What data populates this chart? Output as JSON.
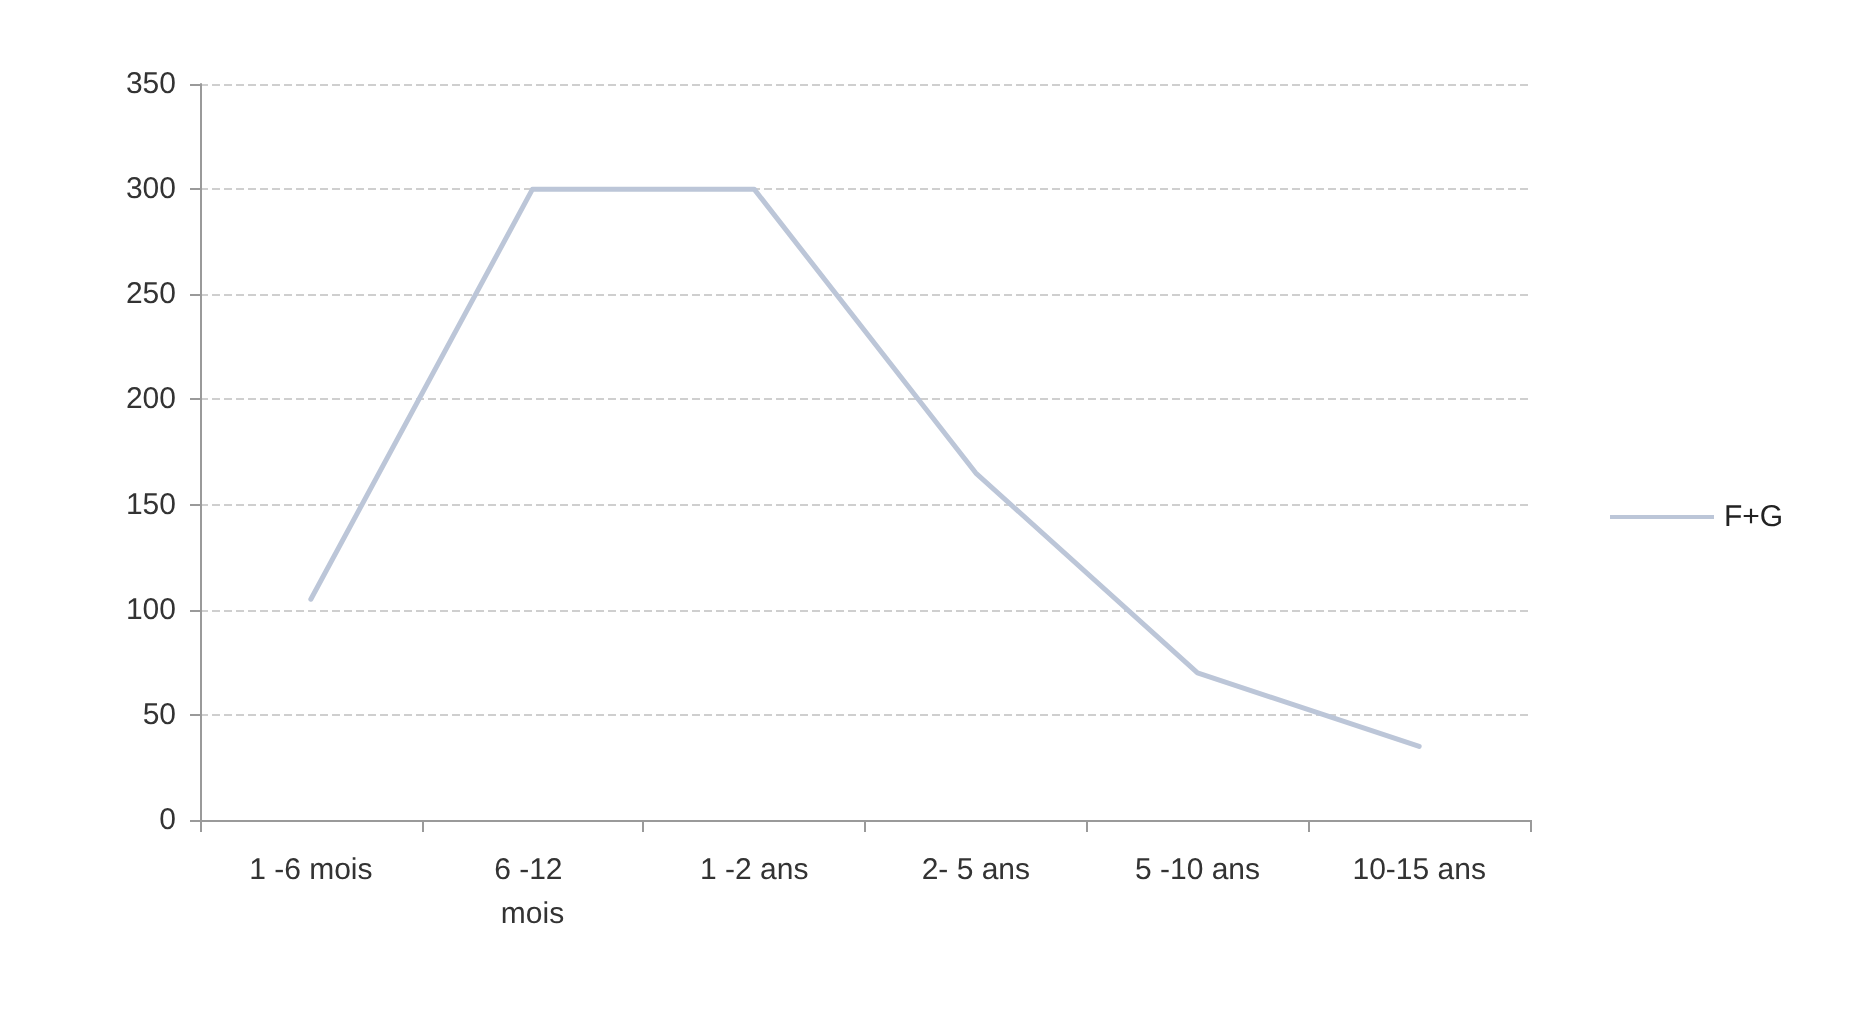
{
  "chart_data": {
    "type": "line",
    "categories": [
      "1 -6 mois",
      "6 -12 mois",
      "1 -2 ans",
      "2- 5 ans",
      "5 -10 ans",
      "10-15 ans"
    ],
    "series": [
      {
        "name": "F+G",
        "color": "#bcc6d8",
        "values": [
          105,
          300,
          300,
          165,
          70,
          35
        ]
      }
    ],
    "ylim": [
      0,
      350
    ],
    "yticks": [
      0,
      50,
      100,
      150,
      200,
      250,
      300,
      350
    ],
    "grid": "y",
    "legend": "right",
    "marker": "none",
    "line_style": "solid"
  }
}
